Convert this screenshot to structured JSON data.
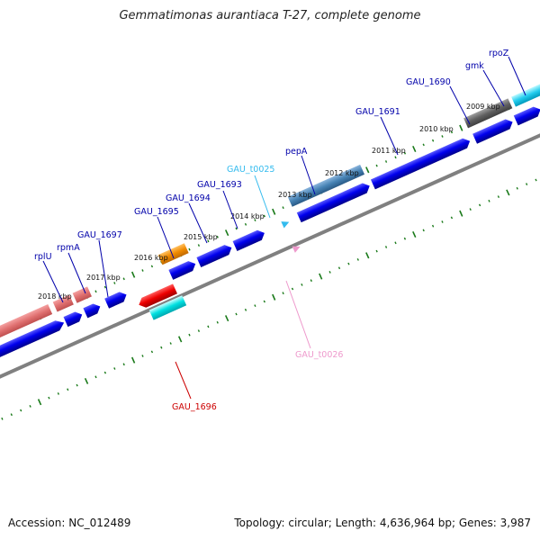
{
  "title": "Gemmatimonas aurantiaca T-27, complete genome",
  "footer": {
    "accession": "Accession: NC_012489",
    "summary": "Topology: circular; Length: 4,636,964 bp; Genes: 3,987"
  },
  "colors": {
    "backbone": "#808080",
    "tick": "#1a7a1a",
    "cds_forward": "#0000ee",
    "label_blue": "#0000aa",
    "label_cyan": "#33bbee",
    "label_pink": "#ee99cc",
    "label_red": "#cc0000"
  },
  "kbp_labels": [
    "2009 kbp",
    "2010 kbp",
    "2011 kbp",
    "2012 kbp",
    "2013 kbp",
    "2014 kbp",
    "2015 kbp",
    "2016 kbp",
    "2017 kbp",
    "2018 kbp"
  ],
  "gene_labels": [
    {
      "name": "rpoZ",
      "color": "#0000aa"
    },
    {
      "name": "gmk",
      "color": "#0000aa"
    },
    {
      "name": "GAU_1690",
      "color": "#0000aa"
    },
    {
      "name": "GAU_1691",
      "color": "#0000aa"
    },
    {
      "name": "pepA",
      "color": "#0000aa"
    },
    {
      "name": "GAU_t0025",
      "color": "#33bbee"
    },
    {
      "name": "GAU_1693",
      "color": "#0000aa"
    },
    {
      "name": "GAU_1694",
      "color": "#0000aa"
    },
    {
      "name": "GAU_1695",
      "color": "#0000aa"
    },
    {
      "name": "GAU_1697",
      "color": "#0000aa"
    },
    {
      "name": "rpmA",
      "color": "#0000aa"
    },
    {
      "name": "rplU",
      "color": "#0000aa"
    },
    {
      "name": "GAU_t0026",
      "color": "#ee99cc"
    },
    {
      "name": "GAU_1696",
      "color": "#cc0000"
    }
  ]
}
